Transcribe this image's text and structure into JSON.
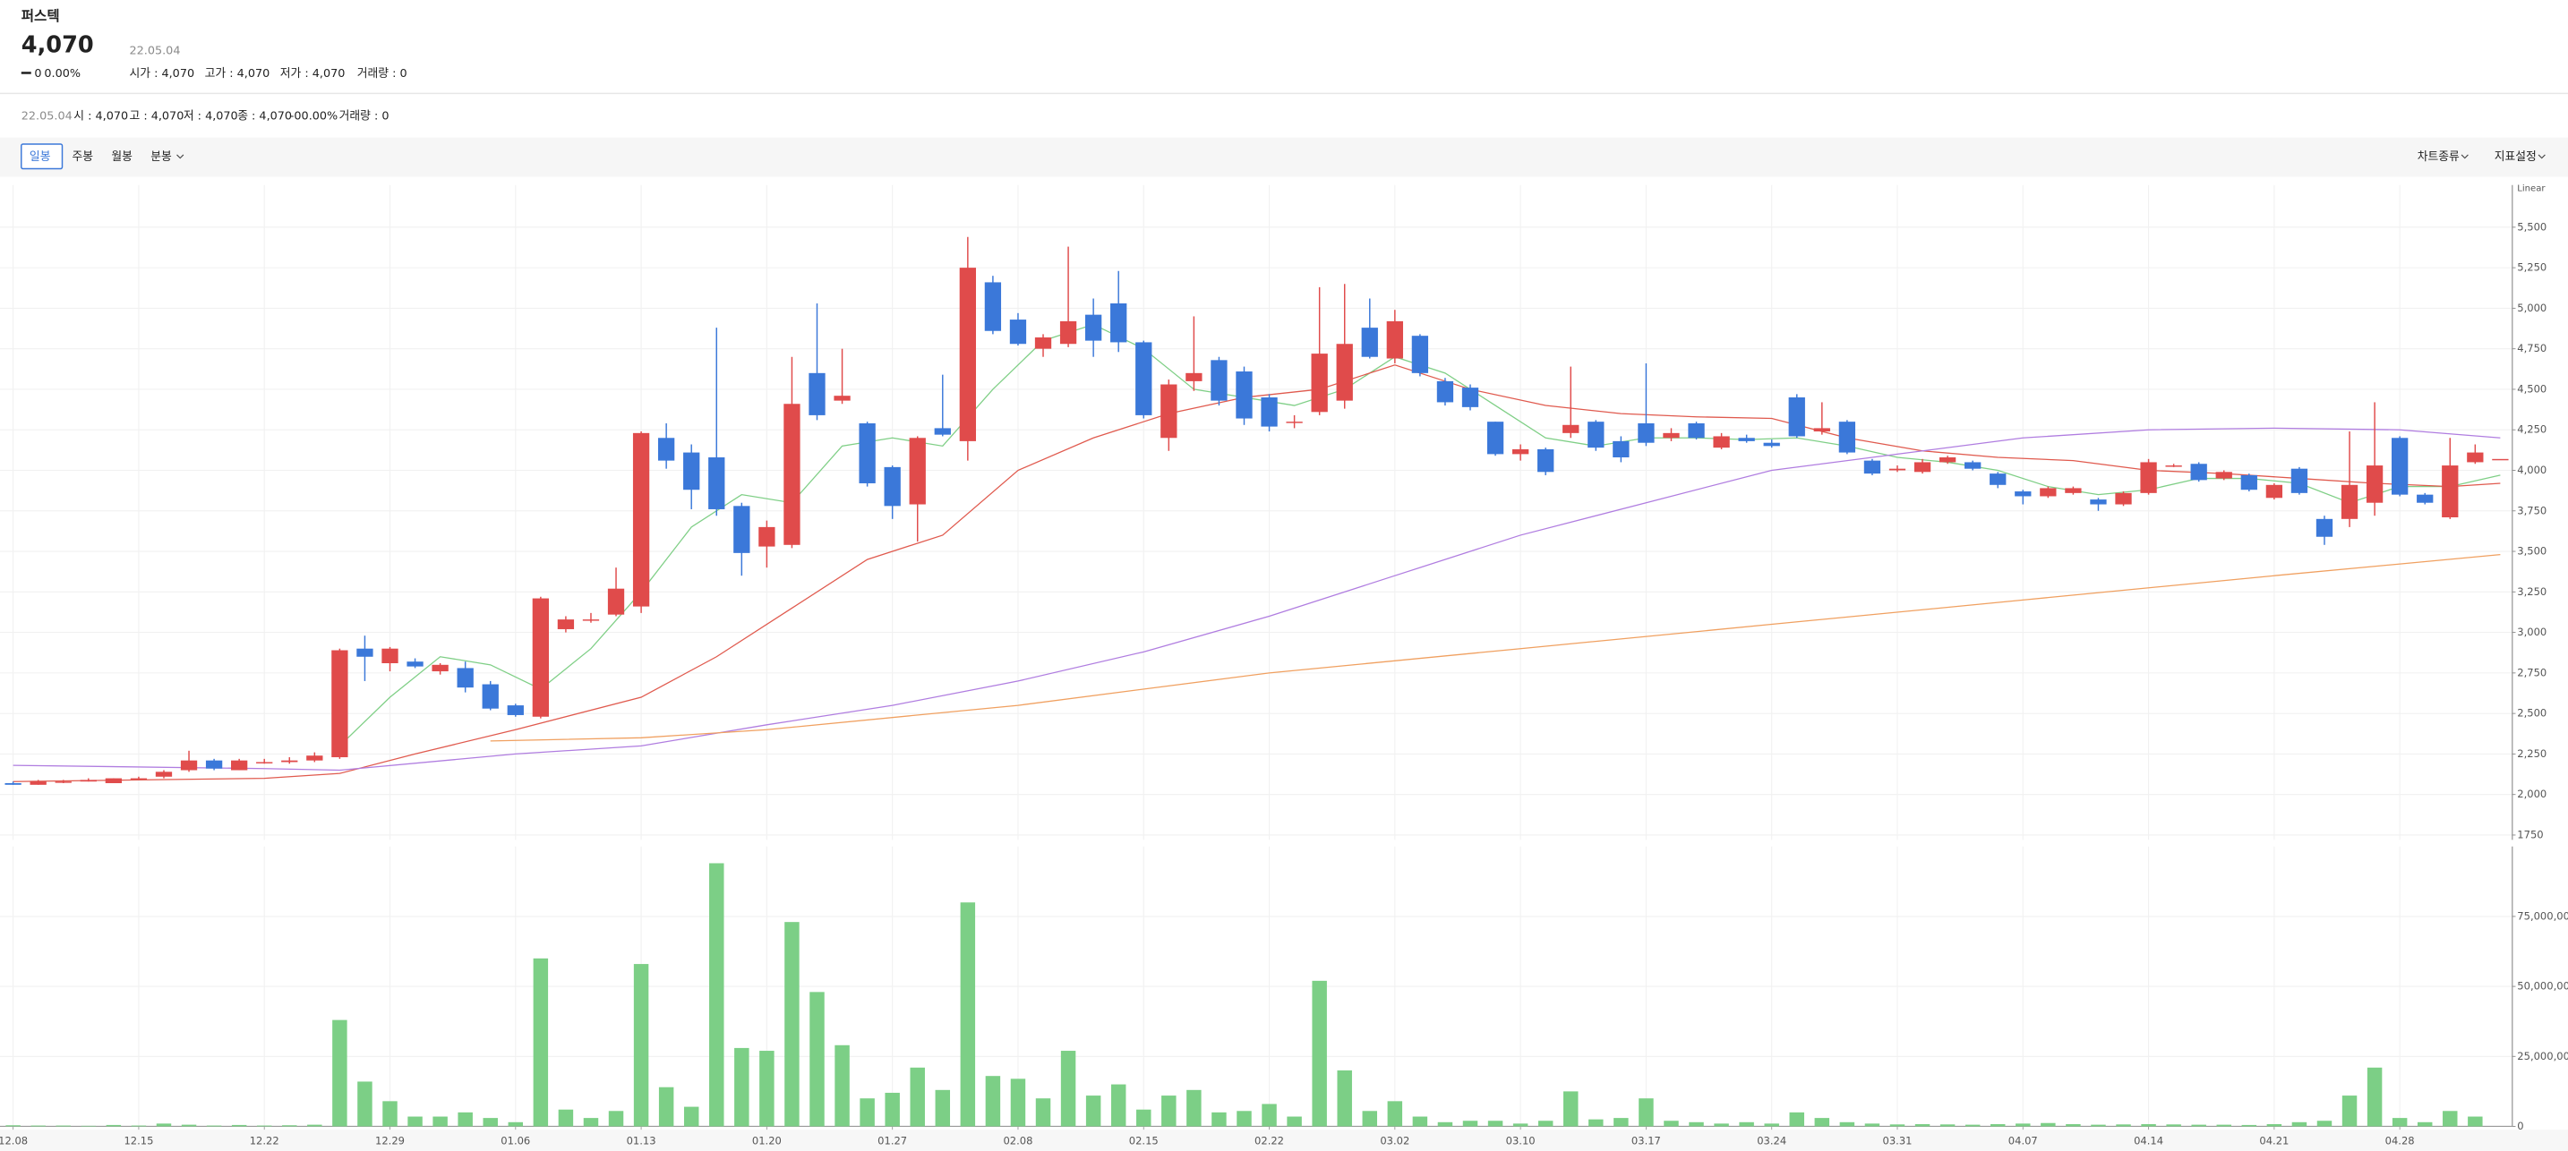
{
  "header": {
    "title": "퍼스텍",
    "price": "4,070",
    "date": "22.05.04",
    "change": "0",
    "change_pct": "0.00%",
    "open": "시가 : 4,070",
    "high": "고가 : 4,070",
    "low": "저가 : 4,070",
    "volume": "거래량 : 0"
  },
  "summary": [
    "22.05.04",
    "시 : 4,070",
    "고 : 4,070",
    "저 : 4,070",
    "종 : 4,070",
    "-0",
    "0.00%",
    "거래량 : 0"
  ],
  "toolbar": {
    "tabs": [
      "일봉",
      "주봉",
      "월봉",
      "분봉"
    ],
    "selected": 0,
    "right": [
      "차트종류",
      "지표설정"
    ]
  },
  "chart_data": [
    {
      "type": "candlestick",
      "scale_label": "Linear",
      "up_color": "#e04b4b",
      "down_color": "#3b78d9",
      "grid": true,
      "categories": [
        "12.08",
        null,
        null,
        null,
        null,
        "12.15",
        null,
        null,
        null,
        null,
        "12.22",
        null,
        null,
        null,
        null,
        "12.29",
        null,
        null,
        null,
        null,
        "01.06",
        null,
        null,
        null,
        null,
        "01.13",
        null,
        null,
        null,
        null,
        "01.20",
        null,
        null,
        null,
        null,
        "01.27",
        null,
        null,
        null,
        null,
        "02.08",
        null,
        null,
        null,
        null,
        "02.15",
        null,
        null,
        null,
        null,
        "02.22",
        null,
        null,
        null,
        null,
        "03.02",
        null,
        null,
        null,
        null,
        "03.10",
        null,
        null,
        null,
        null,
        "03.17",
        null,
        null,
        null,
        null,
        "03.24",
        null,
        null,
        null,
        null,
        "03.31",
        null,
        null,
        null,
        null,
        "04.07",
        null,
        null,
        null,
        null,
        "04.14",
        null,
        null,
        null,
        null,
        "04.21",
        null,
        null,
        null,
        null,
        "04.28",
        null,
        null,
        null,
        null
      ],
      "open": [
        2070,
        2060,
        2080,
        2080,
        2070,
        2100,
        2110,
        2150,
        2210,
        2150,
        2200,
        2200,
        2210,
        2230,
        2900,
        2810,
        2820,
        2760,
        2780,
        2680,
        2550,
        2480,
        3020,
        3080,
        3110,
        3160,
        4200,
        4110,
        4080,
        3780,
        3530,
        3540,
        4600,
        4430,
        4290,
        4020,
        3790,
        4260,
        4180,
        5160,
        4930,
        4750,
        4780,
        4960,
        5030,
        4790,
        4200,
        4550,
        4680,
        4610,
        4450,
        4300,
        4360,
        4430,
        4880,
        4690,
        4830,
        4550,
        4510,
        4300,
        4100,
        4130,
        4230,
        4300,
        4180,
        4290,
        4200,
        4290,
        4140,
        4200,
        4170,
        4450,
        4240,
        4300,
        4060,
        4000,
        3990,
        4050,
        4050,
        3980,
        3870,
        3840,
        3860,
        3820,
        3790,
        3860,
        4030,
        4040,
        3950,
        3970,
        3830,
        4010,
        3700,
        3700,
        3800,
        4200,
        3850,
        3710,
        4050,
        4070
      ],
      "high": [
        2080,
        2090,
        2090,
        2100,
        2100,
        2110,
        2150,
        2270,
        2220,
        2220,
        2220,
        2230,
        2260,
        2900,
        2980,
        2910,
        2840,
        2810,
        2820,
        2700,
        2560,
        3220,
        3100,
        3120,
        3400,
        4240,
        4290,
        4160,
        4880,
        3800,
        3690,
        4700,
        5030,
        4750,
        4300,
        4030,
        4210,
        4590,
        5440,
        5200,
        4970,
        4840,
        5380,
        5060,
        5230,
        4800,
        4560,
        4950,
        4700,
        4640,
        4470,
        4340,
        5130,
        5150,
        5060,
        4990,
        4840,
        4570,
        4530,
        4300,
        4160,
        4140,
        4640,
        4310,
        4210,
        4660,
        4260,
        4300,
        4230,
        4220,
        4190,
        4470,
        4420,
        4310,
        4070,
        4030,
        4070,
        4090,
        4060,
        3990,
        3880,
        3900,
        3900,
        3830,
        3870,
        4070,
        4040,
        4050,
        4000,
        3980,
        3920,
        4020,
        3720,
        4240,
        4420,
        4210,
        3860,
        4200,
        4160,
        4070
      ],
      "low": [
        2060,
        2060,
        2070,
        2080,
        2070,
        2090,
        2100,
        2140,
        2150,
        2150,
        2190,
        2190,
        2200,
        2220,
        2700,
        2760,
        2780,
        2740,
        2630,
        2520,
        2480,
        2470,
        3000,
        3060,
        3100,
        3120,
        4010,
        3760,
        3720,
        3350,
        3400,
        3520,
        4310,
        4410,
        3900,
        3700,
        3560,
        4210,
        4060,
        4840,
        4770,
        4700,
        4760,
        4700,
        4730,
        4320,
        4120,
        4490,
        4400,
        4280,
        4240,
        4260,
        4340,
        4380,
        4690,
        4660,
        4580,
        4400,
        4370,
        4090,
        4060,
        3970,
        4200,
        4120,
        4050,
        4150,
        4180,
        4190,
        4130,
        4170,
        4140,
        4200,
        4220,
        4100,
        3970,
        3990,
        3980,
        4040,
        4000,
        3890,
        3790,
        3830,
        3850,
        3750,
        3780,
        3850,
        4020,
        3930,
        3940,
        3870,
        3820,
        3850,
        3540,
        3650,
        3720,
        3840,
        3790,
        3700,
        4040,
        4070
      ],
      "close": [
        2060,
        2080,
        2080,
        2090,
        2100,
        2100,
        2140,
        2210,
        2160,
        2210,
        2200,
        2210,
        2240,
        2890,
        2850,
        2900,
        2790,
        2800,
        2660,
        2530,
        2490,
        3210,
        3080,
        3080,
        3270,
        4230,
        4060,
        3880,
        3760,
        3490,
        3650,
        4410,
        4340,
        4460,
        3920,
        3780,
        4200,
        4220,
        5250,
        4860,
        4780,
        4820,
        4920,
        4800,
        4790,
        4340,
        4530,
        4600,
        4430,
        4320,
        4270,
        4300,
        4720,
        4780,
        4700,
        4920,
        4600,
        4420,
        4390,
        4100,
        4130,
        3990,
        4280,
        4140,
        4080,
        4170,
        4230,
        4200,
        4210,
        4180,
        4150,
        4210,
        4260,
        4110,
        3980,
        4010,
        4050,
        4080,
        4010,
        3910,
        3840,
        3890,
        3890,
        3790,
        3860,
        4050,
        4030,
        3940,
        3990,
        3880,
        3910,
        3860,
        3590,
        3910,
        4030,
        3850,
        3800,
        4030,
        4110,
        4070
      ],
      "moving_averages": [
        {
          "color": "#7fcf86",
          "x": [
            13,
            15,
            17,
            19,
            21,
            23,
            25,
            27,
            29,
            31,
            33,
            35,
            37,
            39,
            41,
            43,
            45,
            47,
            49,
            51,
            53,
            55,
            57,
            59,
            61,
            63,
            65,
            67,
            69,
            71,
            73,
            75,
            77,
            79,
            81,
            83,
            85,
            87,
            89,
            91,
            93,
            95,
            97,
            99
          ],
          "values": [
            2300,
            2600,
            2850,
            2800,
            2650,
            2900,
            3250,
            3650,
            3850,
            3800,
            4150,
            4200,
            4150,
            4500,
            4800,
            4900,
            4750,
            4500,
            4450,
            4400,
            4500,
            4700,
            4600,
            4400,
            4200,
            4150,
            4200,
            4200,
            4190,
            4200,
            4150,
            4080,
            4050,
            4000,
            3900,
            3850,
            3880,
            3950,
            3950,
            3920,
            3800,
            3900,
            3900,
            3970
          ]
        },
        {
          "color": "#e05a4e",
          "x": [
            0,
            10,
            13,
            16,
            20,
            25,
            28,
            31,
            34,
            37,
            40,
            43,
            46,
            49,
            52,
            55,
            58,
            61,
            64,
            67,
            70,
            73,
            76,
            79,
            82,
            85,
            88,
            91,
            94,
            97,
            99
          ],
          "values": [
            2080,
            2100,
            2130,
            2250,
            2400,
            2600,
            2850,
            3150,
            3450,
            3600,
            4000,
            4200,
            4350,
            4450,
            4500,
            4650,
            4500,
            4400,
            4350,
            4330,
            4320,
            4200,
            4120,
            4080,
            4060,
            4000,
            3980,
            3950,
            3920,
            3900,
            3920
          ]
        },
        {
          "color": "#b07de0",
          "x": [
            0,
            10,
            13,
            20,
            25,
            30,
            35,
            40,
            45,
            50,
            55,
            60,
            65,
            70,
            75,
            80,
            85,
            90,
            95,
            99
          ],
          "values": [
            2180,
            2160,
            2150,
            2250,
            2300,
            2430,
            2550,
            2700,
            2880,
            3100,
            3350,
            3600,
            3800,
            4000,
            4100,
            4200,
            4250,
            4260,
            4250,
            4200
          ]
        },
        {
          "color": "#f0a060",
          "x": [
            19,
            25,
            30,
            40,
            50,
            60,
            70,
            80,
            90,
            99
          ],
          "values": [
            2330,
            2350,
            2400,
            2550,
            2750,
            2900,
            3050,
            3200,
            3350,
            3480
          ]
        }
      ],
      "ylim": [
        1720,
        5760
      ],
      "yticks": [
        1750,
        {
          "value": 2000,
          "label": "2,000"
        },
        {
          "value": 2250,
          "label": "2,250"
        },
        {
          "value": 2500,
          "label": "2,500"
        },
        {
          "value": 2750,
          "label": "2,750"
        },
        {
          "value": 3000,
          "label": "3,000"
        },
        {
          "value": 3250,
          "label": "3,250"
        },
        {
          "value": 3500,
          "label": "3,500"
        },
        {
          "value": 3750,
          "label": "3,750"
        },
        {
          "value": 4000,
          "label": "4,000"
        },
        {
          "value": 4250,
          "label": "4,250"
        },
        {
          "value": 4500,
          "label": "4,500"
        },
        {
          "value": 4750,
          "label": "4,750"
        },
        {
          "value": 5000,
          "label": "5,000"
        },
        {
          "value": 5250,
          "label": "5,250"
        },
        {
          "value": 5500,
          "label": "5,500"
        }
      ]
    },
    {
      "type": "bar",
      "color": "#7ccf86",
      "values": [
        400000,
        300000,
        300000,
        200000,
        500000,
        300000,
        1000000,
        600000,
        300000,
        500000,
        300000,
        400000,
        600000,
        38000000,
        16000000,
        9000000,
        3500000,
        3500000,
        5000000,
        3000000,
        1500000,
        60000000,
        6000000,
        3000000,
        5500000,
        58000000,
        14000000,
        7000000,
        94000000,
        28000000,
        27000000,
        73000000,
        48000000,
        29000000,
        10000000,
        12000000,
        21000000,
        13000000,
        80000000,
        18000000,
        17000000,
        10000000,
        27000000,
        11000000,
        15000000,
        6000000,
        11000000,
        13000000,
        5000000,
        5500000,
        8000000,
        3500000,
        52000000,
        20000000,
        5500000,
        9000000,
        3500000,
        1500000,
        2000000,
        2000000,
        1000000,
        2000000,
        12500000,
        2500000,
        3000000,
        10000000,
        2000000,
        1500000,
        1000000,
        1500000,
        1000000,
        5000000,
        3000000,
        1500000,
        1000000,
        700000,
        800000,
        700000,
        600000,
        800000,
        1000000,
        1200000,
        800000,
        600000,
        700000,
        800000,
        700000,
        600000,
        600000,
        500000,
        800000,
        1500000,
        2000000,
        11000000,
        21000000,
        3000000,
        1500000,
        5500000,
        3500000,
        0
      ],
      "ylim": [
        0,
        100000000
      ],
      "yticks": [
        0,
        {
          "value": 25000000,
          "label": "25,000,000"
        },
        {
          "value": 50000000,
          "label": "50,000,000"
        },
        {
          "value": 75000000,
          "label": "75,000,000"
        }
      ]
    }
  ]
}
